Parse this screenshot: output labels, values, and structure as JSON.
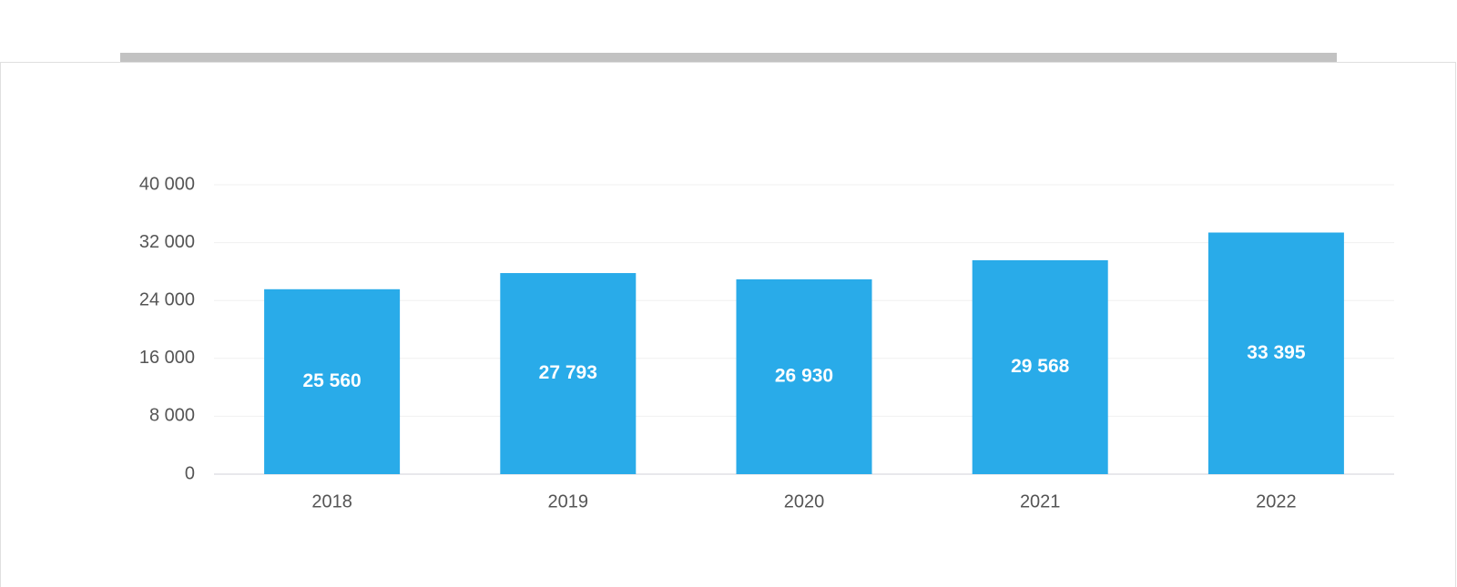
{
  "chart_data": {
    "type": "bar",
    "categories": [
      "2018",
      "2019",
      "2020",
      "2021",
      "2022"
    ],
    "values": [
      25560,
      27793,
      26930,
      29568,
      33395
    ],
    "value_labels": [
      "25 560",
      "27 793",
      "26 930",
      "29 568",
      "33 395"
    ],
    "color": "#29abe9",
    "ylim": [
      0,
      40000
    ],
    "yticks": [
      0,
      {
        "value": 8000,
        "label": "8 000"
      },
      {
        "value": 16000,
        "label": "16 000"
      },
      {
        "value": 24000,
        "label": "24 000"
      },
      {
        "value": 32000,
        "label": "32 000"
      },
      {
        "value": 40000,
        "label": "40 000"
      }
    ],
    "grid": true
  }
}
